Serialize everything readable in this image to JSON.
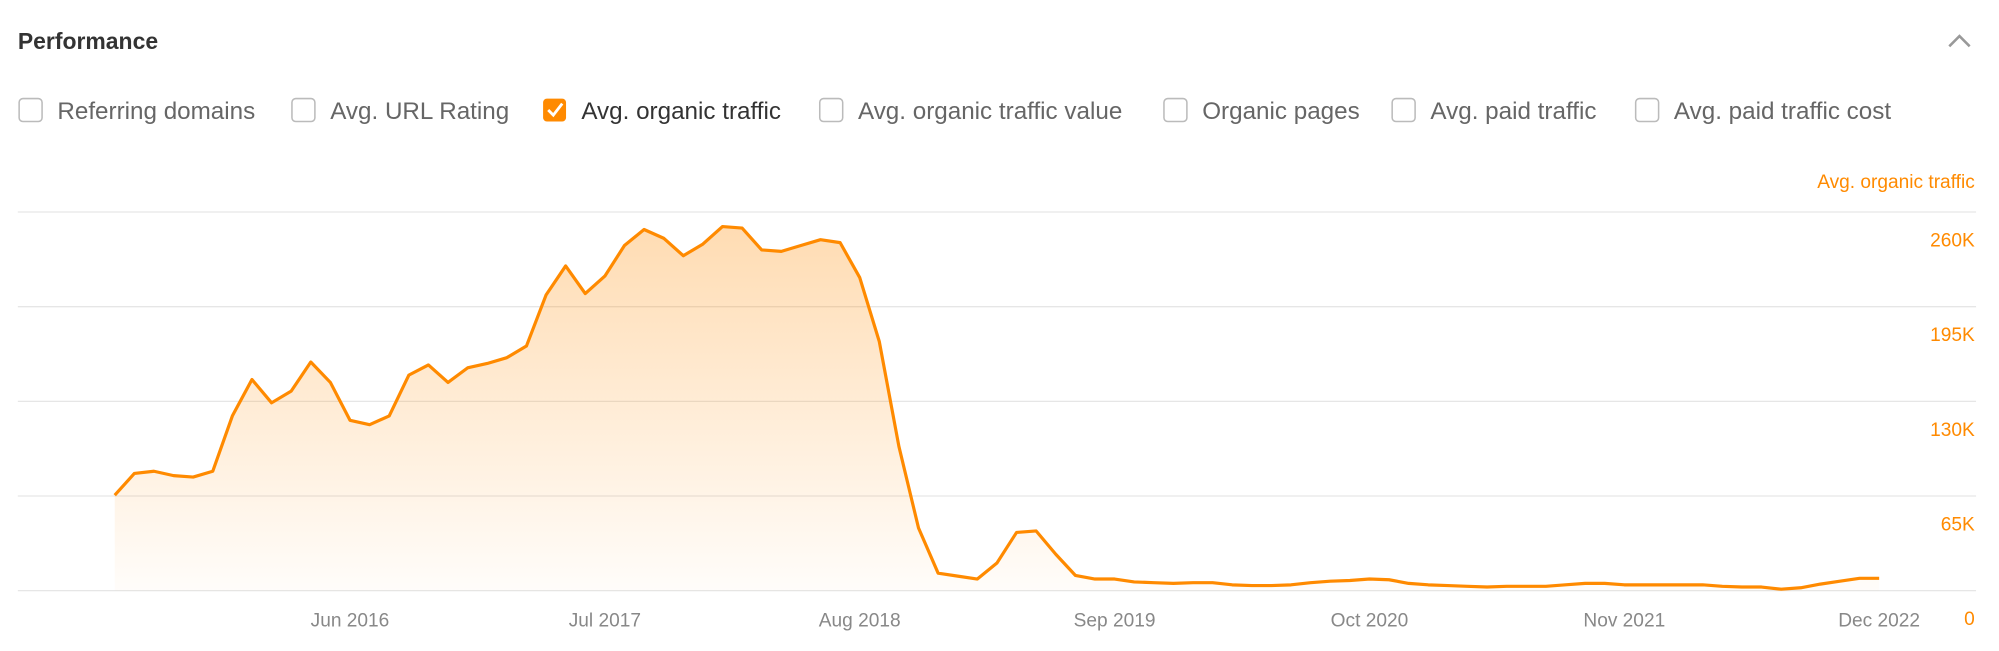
{
  "header": {
    "title": "Performance"
  },
  "filters": [
    {
      "label": "Referring domains",
      "checked": false
    },
    {
      "label": "Avg. URL Rating",
      "checked": false
    },
    {
      "label": "Avg. organic traffic",
      "checked": true
    },
    {
      "label": "Avg. organic traffic value",
      "checked": false
    },
    {
      "label": "Organic pages",
      "checked": false
    },
    {
      "label": "Avg. paid traffic",
      "checked": false
    },
    {
      "label": "Avg. paid traffic cost",
      "checked": false
    }
  ],
  "chart_data": {
    "type": "area",
    "color": "#ff8a00",
    "grid": true,
    "categories": [
      null,
      null,
      null,
      null,
      null,
      null,
      null,
      null,
      null,
      null,
      null,
      null,
      "Jun 2016",
      null,
      null,
      null,
      null,
      null,
      null,
      null,
      null,
      null,
      null,
      null,
      null,
      "Jul 2017",
      null,
      null,
      null,
      null,
      null,
      null,
      null,
      null,
      null,
      null,
      null,
      null,
      "Aug 2018",
      null,
      null,
      null,
      null,
      null,
      null,
      null,
      null,
      null,
      null,
      null,
      null,
      "Sep 2019",
      null,
      null,
      null,
      null,
      null,
      null,
      null,
      null,
      null,
      null,
      null,
      null,
      "Oct 2020",
      null,
      null,
      null,
      null,
      null,
      null,
      null,
      null,
      null,
      null,
      null,
      null,
      "Nov 2021",
      null,
      null,
      null,
      null,
      null,
      null,
      null,
      null,
      null,
      null,
      null,
      null,
      "Dec 2022"
    ],
    "series": [
      {
        "name": "Avg. organic traffic",
        "color": "#ff8a00",
        "axis": "y2",
        "values": [
          65600,
          80500,
          82000,
          79000,
          78000,
          82000,
          120000,
          145000,
          129000,
          137000,
          157000,
          143000,
          117000,
          114000,
          120000,
          148000,
          155000,
          143000,
          153000,
          156000,
          160000,
          168000,
          203000,
          223000,
          204000,
          216000,
          237000,
          248000,
          242000,
          230000,
          238000,
          250000,
          249000,
          234000,
          233000,
          237000,
          241000,
          239000,
          215000,
          171000,
          99000,
          43000,
          12000,
          10000,
          8000,
          19000,
          40000,
          41000,
          25000,
          10500,
          8000,
          8000,
          6000,
          5500,
          5000,
          5500,
          5500,
          4000,
          3500,
          3500,
          4000,
          5500,
          6500,
          7000,
          8000,
          7500,
          5000,
          4000,
          3500,
          3000,
          2500,
          3000,
          3000,
          3000,
          4000,
          5000,
          5000,
          4000,
          4000,
          4000,
          4000,
          4000,
          3000,
          2500,
          2500,
          1000,
          2000,
          4500,
          6500,
          8500,
          8500
        ]
      }
    ],
    "y2lim": [
      0,
      260000
    ],
    "y2ticks": [
      0,
      {
        "value": 65000,
        "label": "65K"
      },
      {
        "value": 130000,
        "label": "130K"
      },
      {
        "value": 195000,
        "label": "195K"
      },
      {
        "value": 260000,
        "label": "260K"
      }
    ]
  }
}
